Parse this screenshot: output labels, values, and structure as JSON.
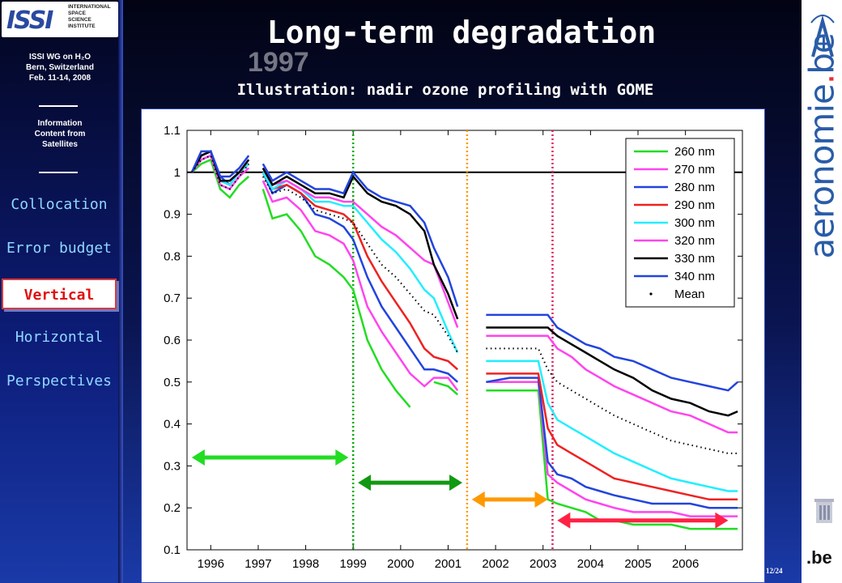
{
  "sidebar": {
    "logo_mark": "ISSI",
    "logo_words": [
      "INTERNATIONAL",
      "SPACE",
      "SCIENCE",
      "INSTITUTE"
    ],
    "workshop_line1": "ISSI WG on H₂O",
    "workshop_line2": "Bern, Switzerland",
    "workshop_line3": "Feb. 11-14, 2008",
    "info_line1": "Information",
    "info_line2": "Content from",
    "info_line3": "Satellites",
    "nav": [
      {
        "label": "Collocation",
        "active": false
      },
      {
        "label": "Error budget",
        "active": false
      },
      {
        "label": "Vertical",
        "active": true
      },
      {
        "label": "Horizontal",
        "active": false
      },
      {
        "label": "Perspectives",
        "active": false
      }
    ]
  },
  "header": {
    "title": "Long-term degradation",
    "ghost_text": "1997",
    "subtitle": "Illustration: nadir ozone profiling with GOME"
  },
  "right_logo": {
    "word_main": "aeronomie",
    "word_dot": ".",
    "word_be": "be",
    "bottom": ".be"
  },
  "footer": {
    "page": "12/24"
  },
  "colors": {
    "accent_nav": "#8fd8ff",
    "active_nav": "#e01010"
  },
  "chart_data": {
    "type": "line",
    "xlim": [
      1995.5,
      2007.2
    ],
    "ylim": [
      0.1,
      1.1
    ],
    "xticks": [
      1996,
      1997,
      1998,
      1999,
      2000,
      2001,
      2002,
      2003,
      2004,
      2005,
      2006
    ],
    "yticks": [
      0.1,
      0.2,
      0.3,
      0.4,
      0.5,
      0.6,
      0.7,
      0.8,
      0.9,
      1,
      1.1
    ],
    "ytick_labels": [
      "0.1",
      "0.2",
      "0.3",
      "0.4",
      "0.5",
      "0.6",
      "0.7",
      "0.8",
      "0.9",
      "1",
      "1.1"
    ],
    "reference_line": 1.0,
    "vertical_lines": [
      {
        "x": 1999.0,
        "color": "#00aa00"
      },
      {
        "x": 2001.4,
        "color": "#ff9900"
      },
      {
        "x": 2003.2,
        "color": "#e0205a"
      }
    ],
    "arrows": [
      {
        "x1": 1995.6,
        "x2": 1998.9,
        "y": 0.32,
        "color": "#22dd22"
      },
      {
        "x1": 1999.1,
        "x2": 2001.3,
        "y": 0.26,
        "color": "#119911"
      },
      {
        "x1": 2001.5,
        "x2": 2003.1,
        "y": 0.22,
        "color": "#ff9900"
      },
      {
        "x1": 2003.3,
        "x2": 2006.9,
        "y": 0.17,
        "color": "#ff2244"
      }
    ],
    "legend_position": "top-right",
    "x": [
      1995.6,
      1995.8,
      1996.0,
      1996.2,
      1996.4,
      1996.6,
      1996.8,
      1997.0,
      1997.1,
      1997.3,
      1997.6,
      1997.9,
      1998.2,
      1998.5,
      1998.8,
      1999.0,
      1999.3,
      1999.6,
      1999.9,
      2000.2,
      2000.5,
      2000.7,
      2001.0,
      2001.2,
      2001.5,
      2001.8,
      2002.3,
      2002.9,
      2003.1,
      2003.3,
      2003.6,
      2003.9,
      2004.2,
      2004.5,
      2004.9,
      2005.3,
      2005.7,
      2006.1,
      2006.5,
      2006.9,
      2007.1
    ],
    "series": [
      {
        "name": "260 nm",
        "color": "#22dd22",
        "style": "solid",
        "values": [
          1.0,
          1.02,
          1.03,
          0.96,
          0.94,
          0.97,
          0.99,
          null,
          0.96,
          0.89,
          0.9,
          0.86,
          0.8,
          0.78,
          0.75,
          0.72,
          0.6,
          0.53,
          0.48,
          0.44,
          null,
          0.5,
          0.49,
          0.47,
          null,
          0.48,
          0.48,
          0.48,
          0.22,
          0.21,
          0.2,
          0.19,
          0.17,
          0.17,
          0.16,
          0.16,
          0.16,
          0.15,
          0.15,
          0.15,
          0.15
        ]
      },
      {
        "name": "270 nm",
        "color": "#ff44ee",
        "style": "solid",
        "values": [
          1.0,
          1.03,
          1.04,
          0.97,
          0.96,
          0.99,
          1.01,
          null,
          0.98,
          0.93,
          0.94,
          0.91,
          0.86,
          0.85,
          0.83,
          0.79,
          0.68,
          0.62,
          0.57,
          0.52,
          0.49,
          0.51,
          0.51,
          0.48,
          null,
          0.5,
          0.5,
          0.5,
          0.28,
          0.26,
          0.24,
          0.22,
          0.21,
          0.2,
          0.19,
          0.19,
          0.19,
          0.18,
          0.18,
          0.18,
          0.18
        ]
      },
      {
        "name": "280 nm",
        "color": "#2244dd",
        "style": "solid",
        "values": [
          1.0,
          1.04,
          1.05,
          0.99,
          0.97,
          1.0,
          1.02,
          null,
          1.0,
          0.95,
          0.97,
          0.95,
          0.9,
          0.89,
          0.87,
          0.84,
          0.75,
          0.68,
          0.63,
          0.58,
          0.53,
          0.53,
          0.52,
          0.5,
          null,
          0.5,
          0.51,
          0.51,
          0.31,
          0.28,
          0.27,
          0.25,
          0.24,
          0.23,
          0.22,
          0.21,
          0.21,
          0.21,
          0.2,
          0.2,
          0.2
        ]
      },
      {
        "name": "290 nm",
        "color": "#ee2222",
        "style": "solid",
        "values": [
          1.0,
          1.04,
          1.05,
          0.98,
          0.97,
          1.0,
          1.02,
          null,
          1.0,
          0.96,
          0.97,
          0.95,
          0.92,
          0.91,
          0.9,
          0.88,
          0.8,
          0.74,
          0.69,
          0.64,
          0.58,
          0.56,
          0.55,
          0.53,
          null,
          0.52,
          0.52,
          0.52,
          0.39,
          0.35,
          0.33,
          0.31,
          0.29,
          0.27,
          0.26,
          0.25,
          0.24,
          0.23,
          0.22,
          0.22,
          0.22
        ]
      },
      {
        "name": "300 nm",
        "color": "#22eeff",
        "style": "solid",
        "values": [
          1.0,
          1.04,
          1.05,
          0.98,
          0.97,
          1.0,
          1.02,
          null,
          1.0,
          0.96,
          0.98,
          0.96,
          0.93,
          0.93,
          0.92,
          0.92,
          0.88,
          0.84,
          0.81,
          0.77,
          0.72,
          0.7,
          0.62,
          0.57,
          null,
          0.55,
          0.55,
          0.55,
          0.45,
          0.41,
          0.39,
          0.37,
          0.35,
          0.33,
          0.31,
          0.29,
          0.27,
          0.26,
          0.25,
          0.24,
          0.24
        ]
      },
      {
        "name": "320 nm",
        "color": "#ff44ee",
        "style": "solid",
        "values": [
          1.0,
          1.04,
          1.05,
          0.98,
          0.98,
          1.0,
          1.03,
          null,
          1.01,
          0.97,
          0.98,
          0.96,
          0.94,
          0.94,
          0.93,
          0.93,
          0.9,
          0.87,
          0.85,
          0.82,
          0.79,
          0.78,
          0.69,
          0.63,
          null,
          0.61,
          0.61,
          0.61,
          0.61,
          0.58,
          0.56,
          0.53,
          0.51,
          0.49,
          0.47,
          0.45,
          0.43,
          0.42,
          0.4,
          0.38,
          0.38
        ]
      },
      {
        "name": "330 nm",
        "color": "#000000",
        "style": "solid",
        "values": [
          1.0,
          1.04,
          1.05,
          0.98,
          0.98,
          1.0,
          1.03,
          null,
          1.01,
          0.97,
          0.99,
          0.97,
          0.95,
          0.95,
          0.94,
          0.99,
          0.95,
          0.93,
          0.92,
          0.9,
          0.86,
          0.78,
          0.71,
          0.65,
          null,
          0.63,
          0.63,
          0.63,
          0.63,
          0.61,
          0.59,
          0.57,
          0.55,
          0.53,
          0.51,
          0.48,
          0.46,
          0.45,
          0.43,
          0.42,
          0.43
        ]
      },
      {
        "name": "340 nm",
        "color": "#2244dd",
        "style": "solid",
        "values": [
          1.0,
          1.05,
          1.05,
          0.99,
          0.99,
          1.01,
          1.04,
          null,
          1.02,
          0.98,
          1.0,
          0.98,
          0.96,
          0.96,
          0.95,
          1.0,
          0.96,
          0.94,
          0.93,
          0.92,
          0.88,
          0.82,
          0.75,
          0.68,
          null,
          0.66,
          0.66,
          0.66,
          0.66,
          0.63,
          0.61,
          0.59,
          0.58,
          0.56,
          0.55,
          0.53,
          0.51,
          0.5,
          0.49,
          0.48,
          0.5
        ]
      },
      {
        "name": "Mean",
        "color": "#000000",
        "style": "dotted",
        "values": [
          1.0,
          1.03,
          1.04,
          0.97,
          0.96,
          0.99,
          1.02,
          null,
          0.99,
          0.95,
          0.96,
          0.94,
          0.91,
          0.9,
          0.89,
          0.88,
          0.83,
          0.78,
          0.75,
          0.71,
          0.67,
          0.66,
          0.61,
          0.57,
          null,
          0.58,
          0.58,
          0.58,
          0.53,
          0.5,
          0.48,
          0.46,
          0.44,
          0.42,
          0.4,
          0.38,
          0.36,
          0.35,
          0.34,
          0.33,
          0.33
        ]
      }
    ]
  }
}
